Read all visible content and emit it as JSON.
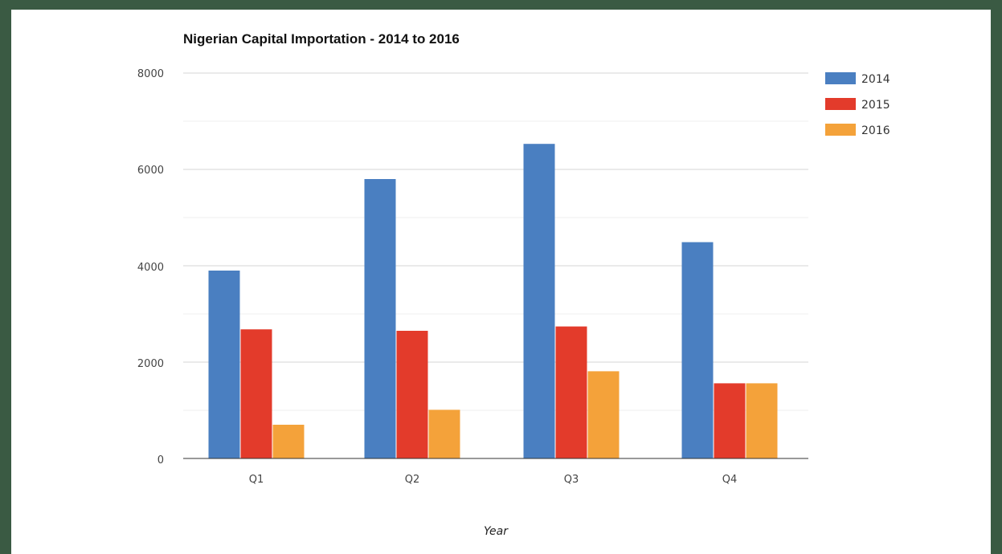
{
  "chart_data": {
    "type": "bar",
    "title": "Nigerian Capital Importation - 2014 to 2016",
    "xlabel": "Year",
    "ylabel": "",
    "categories": [
      "Q1",
      "Q2",
      "Q3",
      "Q4"
    ],
    "series": [
      {
        "name": "2014",
        "color": "#4a7fc1",
        "values": [
          3900,
          5800,
          6530,
          4490
        ]
      },
      {
        "name": "2015",
        "color": "#e33b2b",
        "values": [
          2680,
          2650,
          2740,
          1560
        ]
      },
      {
        "name": "2016",
        "color": "#f4a23a",
        "values": [
          700,
          1010,
          1810,
          1560
        ]
      }
    ],
    "ylim": [
      0,
      8000
    ],
    "yticks": [
      "8000",
      "6000",
      "4000",
      "2000",
      "0"
    ],
    "grid": true,
    "legend_position": "right"
  }
}
